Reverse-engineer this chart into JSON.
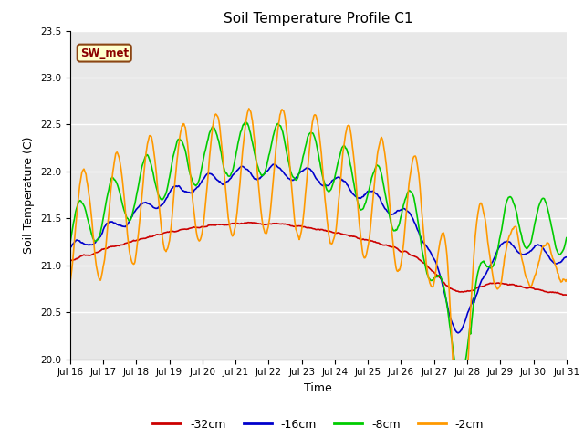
{
  "title": "Soil Temperature Profile C1",
  "xlabel": "Time",
  "ylabel": "Soil Temperature (C)",
  "annotation": "SW_met",
  "ylim": [
    20.0,
    23.5
  ],
  "yticks": [
    20.0,
    20.5,
    21.0,
    21.5,
    22.0,
    22.5,
    23.0,
    23.5
  ],
  "xtick_labels": [
    "Jul 16",
    "Jul 17",
    "Jul 18",
    "Jul 19",
    "Jul 20",
    "Jul 21",
    "Jul 22",
    "Jul 23",
    "Jul 24",
    "Jul 25",
    "Jul 26",
    "Jul 27",
    "Jul 28",
    "Jul 29",
    "Jul 30",
    "Jul 31"
  ],
  "series_colors": [
    "#cc0000",
    "#0000cc",
    "#00cc00",
    "#ff9900"
  ],
  "series_labels": [
    "-32cm",
    "-16cm",
    "-8cm",
    "-2cm"
  ],
  "fig_bg_color": "#ffffff",
  "plot_bg_color": "#e8e8e8",
  "grid_color": "#ffffff",
  "linewidth": 1.2,
  "n_points": 720,
  "total_days": 15
}
